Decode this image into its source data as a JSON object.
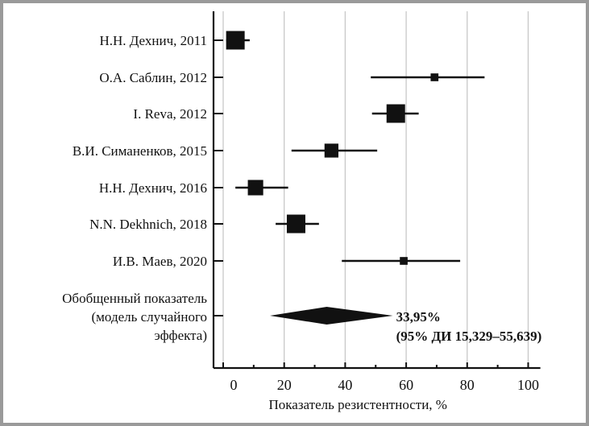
{
  "chart_data": {
    "type": "forest",
    "xlabel": "Показатель резистентности, %",
    "xlim": [
      -4,
      104
    ],
    "xticks": [
      0,
      20,
      40,
      60,
      80,
      100
    ],
    "xtick_labels": [
      "0",
      "20",
      "40",
      "60",
      "80",
      "100"
    ],
    "minor_ticks": [
      10,
      30,
      50,
      70,
      90
    ],
    "grid": true,
    "studies": [
      {
        "label": "Н.Н. Дехнич, 2011",
        "estimate": 4.0,
        "ci": [
          1.0,
          8.7
        ],
        "relative_weight": 1.0
      },
      {
        "label": "О.А. Саблин, 2012",
        "estimate": 69.3,
        "ci": [
          48.4,
          85.7
        ],
        "relative_weight": 0.42
      },
      {
        "label": "I. Reva, 2012",
        "estimate": 56.6,
        "ci": [
          48.8,
          64.1
        ],
        "relative_weight": 1.0
      },
      {
        "label": "В.И. Симаненков, 2015",
        "estimate": 35.5,
        "ci": [
          22.4,
          50.5
        ],
        "relative_weight": 0.75
      },
      {
        "label": "Н.Н. Дехнич, 2016",
        "estimate": 10.6,
        "ci": [
          4.0,
          21.3
        ],
        "relative_weight": 0.83
      },
      {
        "label": "N.N. Dekhnich, 2018",
        "estimate": 23.9,
        "ci": [
          17.2,
          31.4
        ],
        "relative_weight": 1.0
      },
      {
        "label": "И.В. Маев, 2020",
        "estimate": 59.2,
        "ci": [
          38.9,
          77.7
        ],
        "relative_weight": 0.42
      }
    ],
    "pooled": {
      "label_lines": [
        "Обобщенный показатель",
        "(модель случайного",
        "эффекта)"
      ],
      "estimate": 33.95,
      "ci": [
        15.329,
        55.639
      ],
      "annotation_lines": [
        "33,95%",
        "(95% ДИ 15,329–55,639)"
      ]
    }
  }
}
